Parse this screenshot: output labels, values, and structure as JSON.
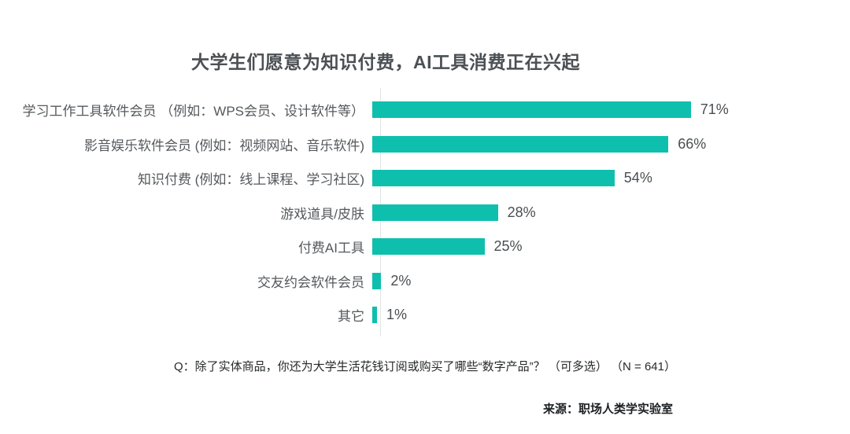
{
  "title": "大学生们愿意为知识付费，AI工具消费正在兴起",
  "chart_data": {
    "type": "bar",
    "orientation": "horizontal",
    "title": "大学生们愿意为知识付费，AI工具消费正在兴起",
    "categories": [
      "学习工作工具软件会员 （例如：WPS会员、设计软件等）",
      "影音娱乐软件会员 (例如：视频网站、音乐软件)",
      "知识付费 (例如：线上课程、学习社区)",
      "游戏道具/皮肤",
      "付费AI工具",
      "交友约会软件会员",
      "其它"
    ],
    "values": [
      71,
      66,
      54,
      28,
      25,
      2,
      1
    ],
    "value_labels": [
      "71%",
      "66%",
      "54%",
      "28%",
      "25%",
      "2%",
      "1%"
    ],
    "unit": "%",
    "xlim": [
      0,
      75
    ],
    "grid": false,
    "legend": "none",
    "bar_color": "#0fbfad"
  },
  "footer": {
    "question": "Q：除了实体商品，你还为大学生活花钱订阅或购买了哪些“数字产品”？ （可多选） （N = 641）",
    "source": "来源：职场人类学实验室"
  }
}
